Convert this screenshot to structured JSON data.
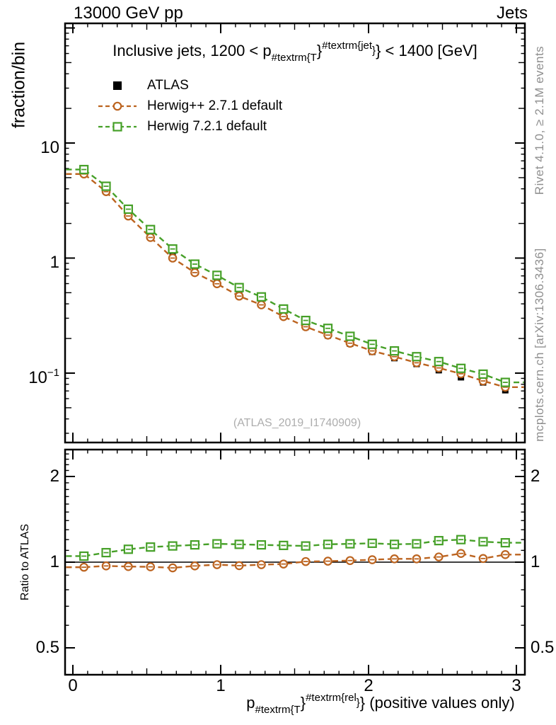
{
  "header": {
    "left": "13000 GeV pp",
    "right": "Jets"
  },
  "panel_title": {
    "part1": "Inclusive jets, 1200 < p",
    "sub": "#textrm{T",
    "brace": "}",
    "sup": "#textrm{jet",
    "supbrace": "}",
    "brace2": "}",
    "part2": " < 1400 [GeV]"
  },
  "legend": [
    {
      "label": "ATLAS",
      "marker": "filled-square"
    },
    {
      "label": "Herwig++ 2.7.1 default",
      "marker": "open-circle"
    },
    {
      "label": "Herwig 7.2.1 default",
      "marker": "open-square"
    }
  ],
  "watermark": "(ATLAS_2019_I1740909)",
  "side_notes": {
    "top": "Rivet 4.1.0, ≥ 2.1M events",
    "bottom": "mcplots.cern.ch [arXiv:1306.3436]"
  },
  "axes": {
    "main": {
      "ylabel": "fraction/bin",
      "yticks": [
        {
          "base": "10",
          "exp": ""
        },
        {
          "base": "1",
          "exp": ""
        },
        {
          "base": "10",
          "exp": "−1"
        }
      ]
    },
    "ratio": {
      "ylabel": "Ratio to ATLAS",
      "yticks": [
        "2",
        "1",
        "0.5"
      ]
    },
    "x": {
      "ticks": [
        "0",
        "1",
        "2",
        "3"
      ]
    }
  },
  "xaxis_title": {
    "p": "p",
    "sub": "#textrm{T",
    "brace": "}",
    "sup": "#textrm{rel",
    "supbrace": "}",
    "brace2": "}",
    "suffix": " (positive values only)"
  },
  "chart_data": {
    "type": "line",
    "yscale": "log",
    "title": "Inclusive jets, 1200 < pT(jet) < 1400 [GeV]",
    "xlabel": "pT rel (positive values only)",
    "ylabel": "fraction/bin",
    "ratio_ylabel": "Ratio to ATLAS",
    "xlim": [
      -0.053,
      3.06
    ],
    "ylim_main": [
      0.025,
      110
    ],
    "ylim_ratio": [
      0.4,
      2.5
    ],
    "xticks": [
      0,
      1,
      2,
      3
    ],
    "main_yticks_labeled": [
      10,
      1,
      0.1
    ],
    "ratio_yticks_labeled": [
      2,
      1,
      0.5
    ],
    "bin_width": 0.15,
    "x": [
      0.075,
      0.225,
      0.375,
      0.525,
      0.675,
      0.825,
      0.975,
      1.125,
      1.275,
      1.425,
      1.575,
      1.725,
      1.875,
      2.025,
      2.175,
      2.325,
      2.475,
      2.625,
      2.775,
      2.925
    ],
    "series": [
      {
        "name": "ATLAS",
        "marker": "filled-square",
        "color": "#000000",
        "line": "none",
        "values": [
          5.6,
          3.9,
          2.4,
          1.57,
          1.05,
          0.77,
          0.61,
          0.48,
          0.4,
          0.315,
          0.252,
          0.212,
          0.18,
          0.153,
          0.135,
          0.12,
          0.106,
          0.092,
          0.083,
          0.071
        ]
      },
      {
        "name": "Herwig++ 2.7.1 default",
        "marker": "open-circle",
        "color": "#bc6420",
        "line": "dashed",
        "values": [
          5.38,
          3.78,
          2.32,
          1.51,
          1.0,
          0.747,
          0.598,
          0.467,
          0.392,
          0.31,
          0.253,
          0.214,
          0.182,
          0.156,
          0.139,
          0.123,
          0.111,
          0.0987,
          0.0855,
          0.0755
        ]
      },
      {
        "name": "Herwig 7.2.1 default",
        "marker": "open-square",
        "color": "#46a028",
        "line": "dashed",
        "values": [
          5.88,
          4.21,
          2.66,
          1.77,
          1.2,
          0.886,
          0.708,
          0.554,
          0.46,
          0.361,
          0.287,
          0.245,
          0.209,
          0.178,
          0.156,
          0.139,
          0.126,
          0.11,
          0.098,
          0.0831
        ]
      }
    ],
    "ratio_to": "ATLAS",
    "ratio_series": [
      {
        "name": "Herwig++ 2.7.1 default",
        "values": [
          0.96,
          0.97,
          0.965,
          0.963,
          0.955,
          0.97,
          0.98,
          0.972,
          0.98,
          0.985,
          1.005,
          1.008,
          1.013,
          1.02,
          1.027,
          1.027,
          1.043,
          1.073,
          1.03,
          1.063
        ]
      },
      {
        "name": "Herwig 7.2.1 default",
        "values": [
          1.05,
          1.08,
          1.11,
          1.13,
          1.14,
          1.15,
          1.16,
          1.155,
          1.15,
          1.145,
          1.14,
          1.155,
          1.16,
          1.165,
          1.155,
          1.16,
          1.19,
          1.2,
          1.18,
          1.17
        ]
      }
    ]
  }
}
